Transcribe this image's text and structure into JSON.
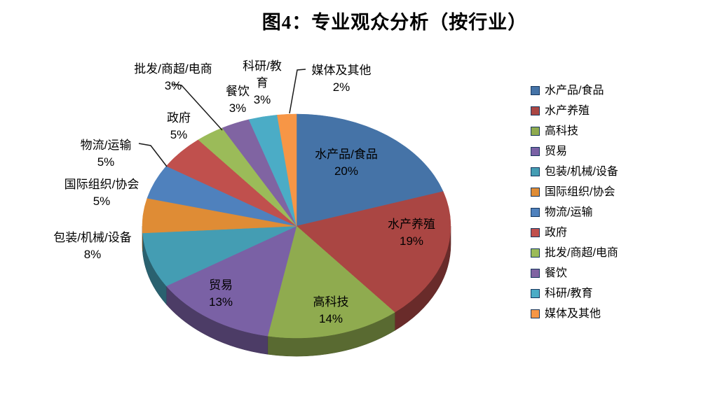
{
  "chart_data": {
    "type": "pie",
    "style": "3d",
    "title": "图4：专业观众分析（按行业）",
    "unit": "%",
    "start_angle_deg": 0,
    "direction": "clockwise",
    "legend_position": "right",
    "data_labels": "category + percent",
    "categories": [
      "水产品/食品",
      "水产养殖",
      "高科技",
      "贸易",
      "包装/机械/设备",
      "国际组织/协会",
      "物流/运输",
      "政府",
      "批发/商超/电商",
      "餐饮",
      "科研/教育",
      "媒体及其他"
    ],
    "values": [
      20,
      19,
      14,
      13,
      8,
      5,
      5,
      5,
      3,
      3,
      3,
      2
    ],
    "colors": [
      "#4573A7",
      "#AA4643",
      "#8FAB4F",
      "#7A61A5",
      "#449DB3",
      "#DF8C35",
      "#4F81BD",
      "#C0504D",
      "#9BBB59",
      "#8064A2",
      "#4BACC6",
      "#F79646"
    ],
    "percent_labels": [
      "20%",
      "19%",
      "14%",
      "13%",
      "8%",
      "5%",
      "5%",
      "5%",
      "3%",
      "3%",
      "3%",
      "2%"
    ]
  },
  "page": {
    "background": "#ffffff"
  }
}
